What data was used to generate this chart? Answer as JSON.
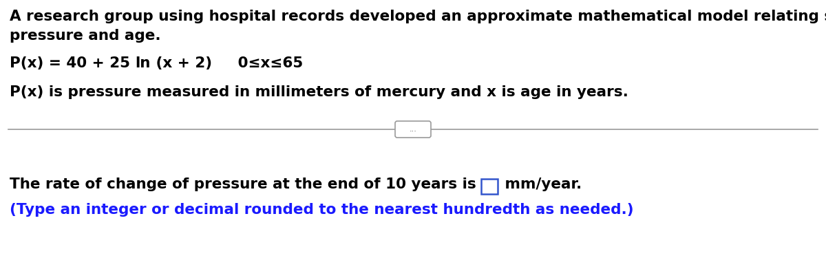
{
  "bg_color": "#ffffff",
  "text_color": "#000000",
  "blue_color": "#1a1aff",
  "line1": "A research group using hospital records developed an approximate mathematical model relating systolic blood",
  "line2": "pressure and age.",
  "desc_line": "P(x) is pressure measured in millimeters of mercury and x is age in years.",
  "question_line_before": "The rate of change of pressure at the end of 10 years is ",
  "question_line_after": " mm/year.",
  "hint_line": "(Type an integer or decimal rounded to the nearest hundredth as needed.)",
  "font_size_main": 15.5,
  "dots_text": "...",
  "formula_part1": "P(x) = 40 + 25 ",
  "formula_part2": "ln",
  "formula_part3": " (x + 2)     0≤x≤65"
}
